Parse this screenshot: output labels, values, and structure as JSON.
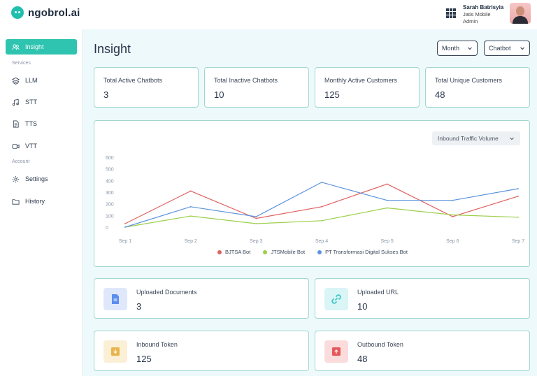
{
  "app": {
    "name": "ngobrol.ai"
  },
  "user": {
    "name": "Sarah Batrisyia",
    "company": "Jatis Mobile",
    "role": "Admin"
  },
  "sidebar": {
    "items": [
      {
        "label": "Insight",
        "icon": "people-icon",
        "active": true
      },
      {
        "label": "LLM",
        "icon": "layers-icon"
      },
      {
        "label": "STT",
        "icon": "music-note-icon"
      },
      {
        "label": "TTS",
        "icon": "document-icon"
      },
      {
        "label": "VTT",
        "icon": "video-icon"
      },
      {
        "label": "Settings",
        "icon": "gear-icon"
      },
      {
        "label": "History",
        "icon": "folder-icon"
      }
    ],
    "sections": {
      "services": "Services",
      "account": "Account"
    }
  },
  "main": {
    "title": "Insight",
    "filters": {
      "period": "Month",
      "chatbot": "Chatbot"
    },
    "stats": [
      {
        "label": "Total Active Chatbots",
        "value": "3"
      },
      {
        "label": "Total Inactive Chatbots",
        "value": "10"
      },
      {
        "label": "Monthly Active Customers",
        "value": "125"
      },
      {
        "label": "Total Unique Customers",
        "value": "48"
      }
    ],
    "chart_select": "Inbound Traffic Volume",
    "cards": [
      {
        "label": "Uploaded Documents",
        "value": "3",
        "icon": "document-icon",
        "color": "#5b8def"
      },
      {
        "label": "Uploaded URL",
        "value": "10",
        "icon": "link-icon",
        "color": "#3fc7c9"
      },
      {
        "label": "Inbound Token",
        "value": "125",
        "icon": "inbox-down-icon",
        "color": "#e9b44c"
      },
      {
        "label": "Outbound Token",
        "value": "48",
        "icon": "inbox-up-icon",
        "color": "#e5575b"
      }
    ]
  },
  "chart_data": {
    "type": "line",
    "categories": [
      "Sep 1",
      "Sep 2",
      "Sep 3",
      "Sep 4",
      "Sep 5",
      "Sep 6",
      "Sep 7"
    ],
    "yticks": [
      "600",
      "500",
      "400",
      "300",
      "200",
      "100",
      "0"
    ],
    "ylim": [
      0,
      600
    ],
    "series": [
      {
        "name": "BJTSA Bot",
        "color": "#e0625f",
        "values": [
          30,
          310,
          75,
          175,
          370,
          90,
          265
        ]
      },
      {
        "name": "JTSMobile Bot",
        "color": "#9ccf4a",
        "values": [
          0,
          95,
          30,
          55,
          165,
          105,
          85
        ]
      },
      {
        "name": "PT Transformasi Digital Sukses Bot",
        "color": "#5b93dc",
        "values": [
          0,
          175,
          90,
          385,
          230,
          230,
          330
        ]
      }
    ],
    "legend": "bottom",
    "grid": false
  }
}
